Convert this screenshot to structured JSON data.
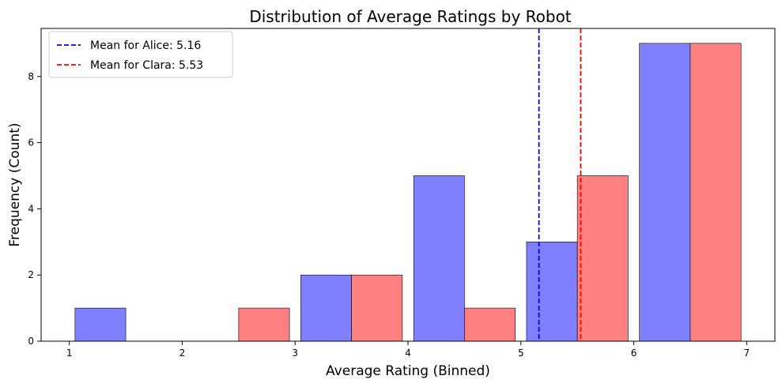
{
  "chart_data": {
    "type": "bar",
    "title": "Distribution of Average Ratings by Robot",
    "xlabel": "Average Rating (Binned)",
    "ylabel": "Frequency (Count)",
    "xlim": [
      0.75,
      7.25
    ],
    "ylim": [
      0,
      9.45
    ],
    "x_ticks": [
      1,
      2,
      3,
      4,
      5,
      6,
      7
    ],
    "y_ticks": [
      0,
      2,
      4,
      6,
      8
    ],
    "grid": false,
    "legend_position": "top-left",
    "series": [
      {
        "name": "Alice",
        "color": "#8080ff",
        "bars": [
          {
            "x0": 1.05,
            "x1": 1.5,
            "value": 1
          },
          {
            "x0": 3.05,
            "x1": 3.5,
            "value": 2
          },
          {
            "x0": 4.05,
            "x1": 4.5,
            "value": 5
          },
          {
            "x0": 5.05,
            "x1": 5.5,
            "value": 3
          },
          {
            "x0": 6.05,
            "x1": 6.5,
            "value": 9
          }
        ]
      },
      {
        "name": "Clara",
        "color": "#ff8080",
        "bars": [
          {
            "x0": 2.5,
            "x1": 2.95,
            "value": 1
          },
          {
            "x0": 3.5,
            "x1": 3.95,
            "value": 2
          },
          {
            "x0": 4.5,
            "x1": 4.95,
            "value": 1
          },
          {
            "x0": 5.5,
            "x1": 5.95,
            "value": 5
          },
          {
            "x0": 6.5,
            "x1": 6.95,
            "value": 9
          }
        ]
      }
    ],
    "mean_lines": [
      {
        "label": "Mean for Alice: 5.16",
        "value": 5.16,
        "color": "#0000ff"
      },
      {
        "label": "Mean for Clara: 5.53",
        "value": 5.53,
        "color": "#ff0000"
      }
    ]
  }
}
